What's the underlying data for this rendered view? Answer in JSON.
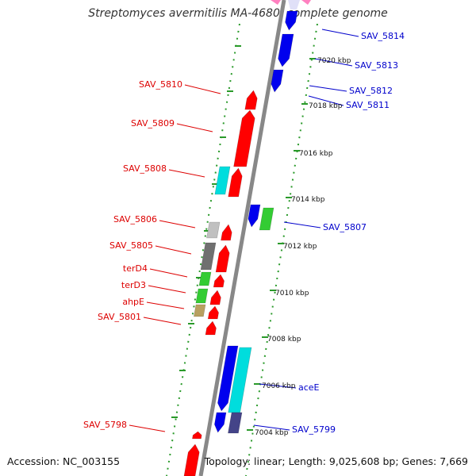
{
  "title": "Streptomyces avermitilis MA-4680, complete genome",
  "footer": {
    "accession": "Accession: NC_003155",
    "topology": "Topology: linear; Length: 9,025,608 bp; Genes: 7,669"
  },
  "colors": {
    "backbone": "#888888",
    "tick": "#2a9a2a",
    "left_label": "#dd0000",
    "right_label": "#0000cc",
    "gene_forward": "#ff0000",
    "gene_reverse": "#0000ee",
    "gene_cyan": "#00dddd",
    "gene_green": "#33cc33",
    "gene_gray": "#707070",
    "gene_lightgray": "#c0c0c0",
    "gene_olive": "#b8a060",
    "gene_navy": "#444488"
  },
  "scale_ticks": [
    "7020 kbp",
    "7018 kbp",
    "7016 kbp",
    "7014 kbp",
    "7012 kbp",
    "7010 kbp",
    "7008 kbp",
    "7006 kbp",
    "7004 kbp"
  ],
  "left_labels": [
    "SAV_5810",
    "SAV_5809",
    "SAV_5808",
    "SAV_5806",
    "SAV_5805",
    "terD4",
    "terD3",
    "ahpE",
    "SAV_5801",
    "SAV_5798"
  ],
  "right_labels": [
    "SAV_5814",
    "SAV_5813",
    "SAV_5812",
    "SAV_5811",
    "SAV_5807",
    "aceE",
    "SAV_5799"
  ]
}
